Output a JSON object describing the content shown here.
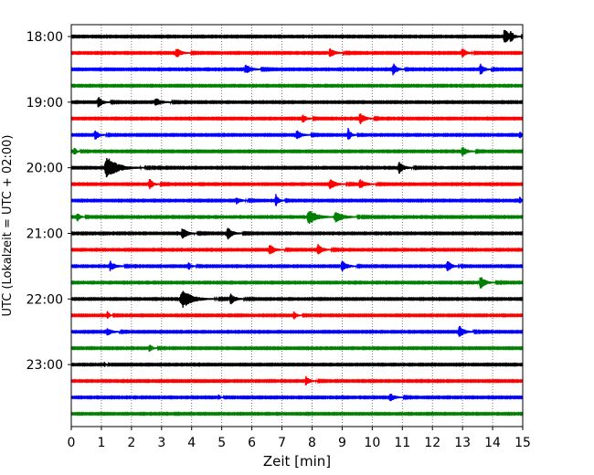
{
  "chart_data": {
    "type": "line",
    "title": "",
    "xlabel": "Zeit  [min]",
    "ylabel": "UTC (Lokalzeit = UTC + 02:00)",
    "xlim": [
      0,
      15
    ],
    "x_ticks": [
      "0",
      "1",
      "2",
      "3",
      "4",
      "5",
      "6",
      "7",
      "8",
      "9",
      "10",
      "11",
      "12",
      "13",
      "14",
      "15"
    ],
    "y_ticks": [
      "18:00",
      "19:00",
      "20:00",
      "21:00",
      "22:00",
      "23:00"
    ],
    "grid": {
      "x": true,
      "y": false,
      "style": "dotted"
    },
    "colors": [
      "#000000",
      "#ff0000",
      "#0000ff",
      "#008000"
    ],
    "traces": [
      {
        "start": "18:00",
        "color": "#000000",
        "events": [
          [
            14.4,
            0.95,
            0.25
          ],
          [
            14.6,
            0.5,
            0.15
          ]
        ]
      },
      {
        "start": "18:15",
        "color": "#ff0000",
        "events": [
          [
            3.5,
            0.6,
            0.25
          ],
          [
            8.6,
            0.55,
            0.25
          ],
          [
            13.0,
            0.6,
            0.2
          ]
        ]
      },
      {
        "start": "18:30",
        "color": "#0000ff",
        "events": [
          [
            5.8,
            0.55,
            0.3
          ],
          [
            10.7,
            0.75,
            0.2
          ],
          [
            13.6,
            0.7,
            0.2
          ]
        ]
      },
      {
        "start": "18:45",
        "color": "#008000",
        "events": []
      },
      {
        "start": "19:00",
        "color": "#000000",
        "events": [
          [
            0.9,
            0.75,
            0.2
          ],
          [
            2.8,
            0.55,
            0.3
          ]
        ]
      },
      {
        "start": "19:15",
        "color": "#ff0000",
        "events": [
          [
            7.7,
            0.5,
            0.2
          ],
          [
            9.6,
            0.7,
            0.25
          ]
        ]
      },
      {
        "start": "19:30",
        "color": "#0000ff",
        "events": [
          [
            0.8,
            0.6,
            0.2
          ],
          [
            7.5,
            0.55,
            0.25
          ],
          [
            9.2,
            0.8,
            0.15
          ],
          [
            14.9,
            0.5,
            0.1
          ]
        ]
      },
      {
        "start": "19:45",
        "color": "#008000",
        "events": [
          [
            0.1,
            0.6,
            0.1
          ],
          [
            13.0,
            0.55,
            0.25
          ]
        ]
      },
      {
        "start": "20:00",
        "color": "#000000",
        "events": [
          [
            1.2,
            1.3,
            0.55
          ],
          [
            10.9,
            0.7,
            0.25
          ]
        ]
      },
      {
        "start": "20:15",
        "color": "#ff0000",
        "events": [
          [
            2.6,
            0.65,
            0.2
          ],
          [
            8.6,
            0.6,
            0.3
          ],
          [
            9.6,
            0.55,
            0.3
          ]
        ]
      },
      {
        "start": "20:30",
        "color": "#0000ff",
        "events": [
          [
            5.5,
            0.45,
            0.2
          ],
          [
            6.8,
            0.75,
            0.15
          ],
          [
            14.9,
            0.5,
            0.1
          ]
        ]
      },
      {
        "start": "20:45",
        "color": "#008000",
        "events": [
          [
            0.2,
            0.55,
            0.15
          ],
          [
            7.9,
            0.85,
            0.45
          ],
          [
            8.8,
            0.6,
            0.4
          ]
        ]
      },
      {
        "start": "21:00",
        "color": "#000000",
        "events": [
          [
            3.7,
            0.7,
            0.25
          ],
          [
            5.2,
            0.75,
            0.25
          ]
        ]
      },
      {
        "start": "21:15",
        "color": "#ff0000",
        "events": [
          [
            6.6,
            0.65,
            0.25
          ],
          [
            8.2,
            0.65,
            0.25
          ]
        ]
      },
      {
        "start": "21:30",
        "color": "#0000ff",
        "events": [
          [
            1.3,
            0.6,
            0.25
          ],
          [
            3.9,
            0.45,
            0.15
          ],
          [
            9.0,
            0.7,
            0.25
          ],
          [
            12.5,
            0.75,
            0.2
          ]
        ]
      },
      {
        "start": "21:45",
        "color": "#008000",
        "events": [
          [
            13.6,
            0.8,
            0.25
          ]
        ]
      },
      {
        "start": "22:00",
        "color": "#000000",
        "events": [
          [
            3.7,
            1.1,
            0.5
          ],
          [
            5.3,
            0.65,
            0.25
          ]
        ]
      },
      {
        "start": "22:15",
        "color": "#ff0000",
        "events": [
          [
            1.2,
            0.55,
            0.1
          ],
          [
            7.4,
            0.5,
            0.15
          ]
        ]
      },
      {
        "start": "22:30",
        "color": "#0000ff",
        "events": [
          [
            1.2,
            0.45,
            0.25
          ],
          [
            12.9,
            0.75,
            0.25
          ]
        ]
      },
      {
        "start": "22:45",
        "color": "#008000",
        "events": [
          [
            2.6,
            0.5,
            0.15
          ]
        ]
      },
      {
        "start": "23:00",
        "color": "#000000",
        "events": [
          [
            1.1,
            0.3,
            0.08
          ]
        ]
      },
      {
        "start": "23:15",
        "color": "#ff0000",
        "events": [
          [
            7.8,
            0.55,
            0.2
          ]
        ]
      },
      {
        "start": "23:30",
        "color": "#0000ff",
        "events": [
          [
            10.6,
            0.5,
            0.25
          ],
          [
            4.9,
            0.3,
            0.1
          ]
        ]
      },
      {
        "start": "23:45",
        "color": "#008000",
        "events": []
      }
    ]
  }
}
